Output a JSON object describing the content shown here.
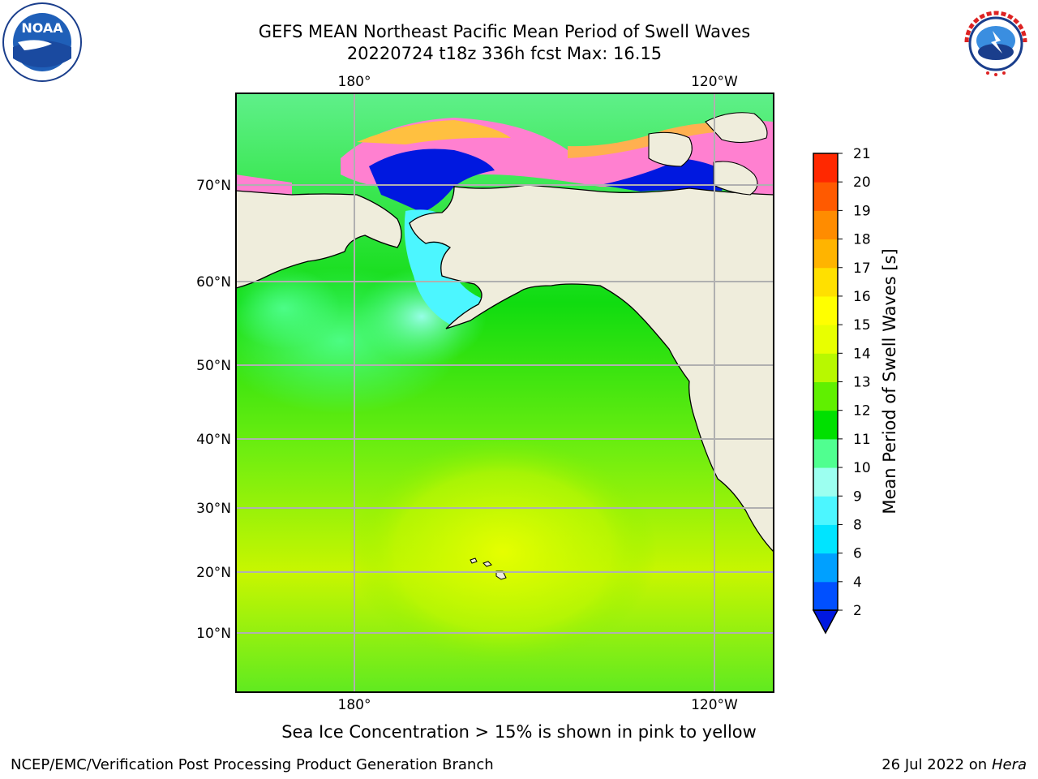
{
  "header": {
    "title_line1": "GEFS MEAN Northeast Pacific Mean Period of Swell Waves",
    "title_line2": "20220724 t18z 336h fcst   Max: 16.15"
  },
  "logos": {
    "left": "noaa-logo",
    "left_text": "NOAA",
    "right": "national-weather-service-logo",
    "right_text": "NATIONAL WEATHER SERVICE"
  },
  "map": {
    "longitude_labels": [
      "180°",
      "120°W"
    ],
    "latitude_labels": [
      "70°N",
      "60°N",
      "50°N",
      "40°N",
      "30°N",
      "20°N",
      "10°N"
    ],
    "land_color": "#efeddc",
    "grid_color": "#b0b0b0"
  },
  "colorbar": {
    "label": "Mean Period of Swell Waves [s]",
    "ticks": [
      "2",
      "4",
      "6",
      "8",
      "9",
      "10",
      "11",
      "12",
      "13",
      "14",
      "15",
      "16",
      "17",
      "18",
      "19",
      "20",
      "21"
    ],
    "colors": [
      "#0050ff",
      "#00a0ff",
      "#00e4ff",
      "#4cf6ff",
      "#9cfff0",
      "#50ff90",
      "#00e000",
      "#60f000",
      "#b8f800",
      "#e8ff00",
      "#ffff00",
      "#ffe000",
      "#ffb400",
      "#ff8c00",
      "#ff5a00",
      "#ff2800"
    ],
    "under_color": "#0018e0"
  },
  "caption": "Sea Ice Concentration > 15% is shown in pink to yellow",
  "footer": {
    "left": "NCEP/EMC/Verification Post Processing Product Generation Branch",
    "right_date": "26 Jul 2022 on ",
    "right_machine": "Hera"
  }
}
